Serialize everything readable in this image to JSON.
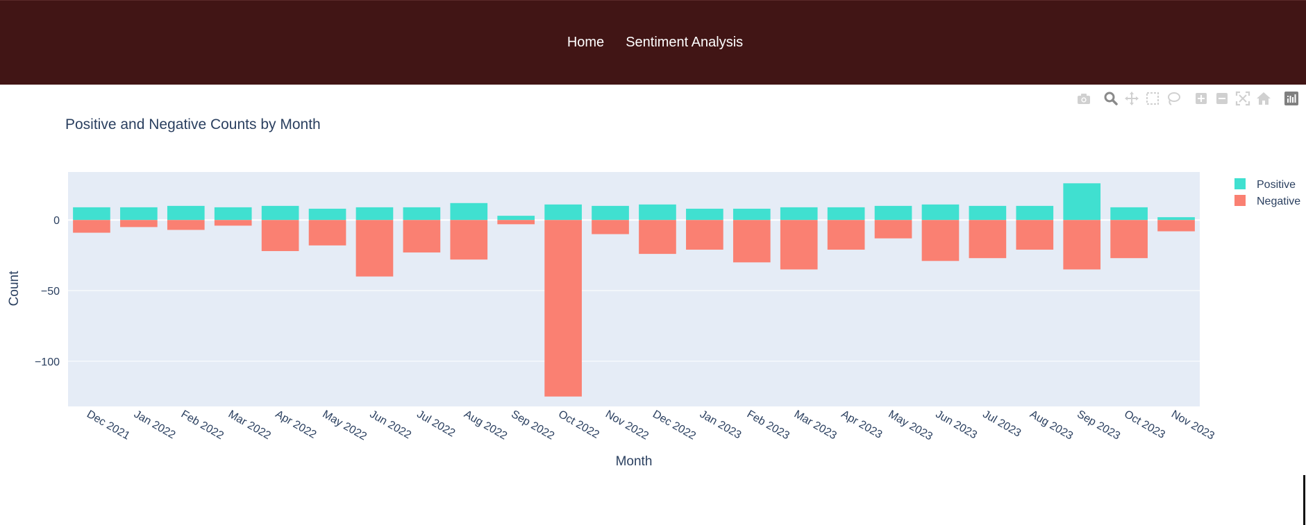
{
  "nav": {
    "links": [
      "Home",
      "Sentiment Analysis"
    ],
    "background": "#411515"
  },
  "modebar": {
    "icons": [
      "camera-icon",
      "zoom-icon",
      "pan-icon",
      "box-select-icon",
      "lasso-select-icon",
      "zoom-in-icon",
      "zoom-out-icon",
      "autoscale-icon",
      "reset-axes-icon",
      "plotly-logo-icon"
    ]
  },
  "chart_data": {
    "type": "bar",
    "barmode": "relative",
    "title": "Positive and Negative Counts by Month",
    "xlabel": "Month",
    "ylabel": "Count",
    "ylim": [
      -132,
      34
    ],
    "yticks": [
      0,
      -50,
      -100
    ],
    "ytick_labels": [
      "0",
      "−50",
      "−100"
    ],
    "grid": true,
    "legend_position": "top-right",
    "plot_bgcolor": "#e5ecf6",
    "categories": [
      "Dec 2021",
      "Jan 2022",
      "Feb 2022",
      "Mar 2022",
      "Apr 2022",
      "May 2022",
      "Jun 2022",
      "Jul 2022",
      "Aug 2022",
      "Sep 2022",
      "Oct 2022",
      "Nov 2022",
      "Dec 2022",
      "Jan 2023",
      "Feb 2023",
      "Mar 2023",
      "Apr 2023",
      "May 2023",
      "Jun 2023",
      "Jul 2023",
      "Aug 2023",
      "Sep 2023",
      "Oct 2023",
      "Nov 2023"
    ],
    "series": [
      {
        "name": "Positive",
        "color": "#40e0d0",
        "values": [
          9,
          9,
          10,
          9,
          10,
          8,
          9,
          9,
          12,
          3,
          11,
          10,
          11,
          8,
          8,
          9,
          9,
          10,
          11,
          10,
          10,
          26,
          9,
          2
        ]
      },
      {
        "name": "Negative",
        "color": "#fa8072",
        "values": [
          -9,
          -5,
          -7,
          -4,
          -22,
          -18,
          -40,
          -23,
          -28,
          -3,
          -125,
          -10,
          -24,
          -21,
          -30,
          -35,
          -21,
          -13,
          -29,
          -27,
          -21,
          -35,
          -27,
          -8
        ]
      }
    ]
  }
}
